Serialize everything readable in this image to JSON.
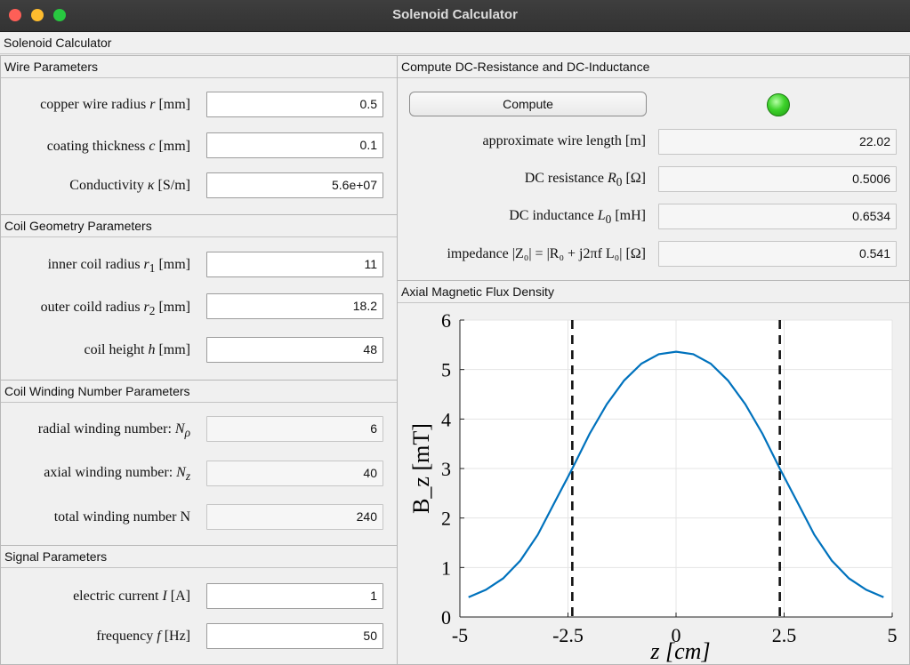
{
  "window": {
    "title": "Solenoid Calculator"
  },
  "app": {
    "title": "Solenoid Calculator"
  },
  "wire": {
    "header": "Wire Parameters",
    "radius_label": "copper wire radius",
    "radius_sym": "r",
    "radius_unit": "[mm]",
    "radius_value": "0.5",
    "coating_label": "coating thickness",
    "coating_sym": "c",
    "coating_unit": "[mm]",
    "coating_value": "0.1",
    "cond_label": "Conductivity",
    "cond_sym": "κ",
    "cond_unit": "[S/m]",
    "cond_value": "5.6e+07"
  },
  "geometry": {
    "header": "Coil Geometry Parameters",
    "inner_label": "inner coil radius",
    "inner_sym": "r",
    "inner_sub": "1",
    "inner_unit": "[mm]",
    "inner_value": "11",
    "outer_label": "outer coild radius",
    "outer_sym": "r",
    "outer_sub": "2",
    "outer_unit": "[mm]",
    "outer_value": "18.2",
    "height_label": "coil height",
    "height_sym": "h",
    "height_unit": "[mm]",
    "height_value": "48"
  },
  "winding": {
    "header": "Coil Winding Number Parameters",
    "radial_label": "radial winding number:",
    "radial_sym": "N",
    "radial_sub": "ρ",
    "radial_value": "6",
    "axial_label": "axial winding number:",
    "axial_sym": "N",
    "axial_sub": "z",
    "axial_value": "40",
    "total_label": "total winding number N",
    "total_value": "240"
  },
  "signal": {
    "header": "Signal Parameters",
    "current_label": "electric current",
    "current_sym": "I",
    "current_unit": "[A]",
    "current_value": "1",
    "freq_label": "frequency",
    "freq_sym": "f",
    "freq_unit": "[Hz]",
    "freq_value": "50"
  },
  "compute": {
    "header": "Compute DC-Resistance and DC-Inductance",
    "button_label": "Compute",
    "status_color": "#3dd22a",
    "length_label": "approximate wire length [m]",
    "length_value": "22.02",
    "res_label": "DC resistance",
    "res_sym": "R",
    "res_sub": "0",
    "res_unit": "[Ω]",
    "res_value": "0.5006",
    "ind_label": "DC inductance",
    "ind_sym": "L",
    "ind_sub": "0",
    "ind_unit": "[mH]",
    "ind_value": "0.6534",
    "imp_label": "impedance |Z₀| = |R₀ + j2πf L₀| [Ω]",
    "imp_value": "0.541"
  },
  "plot": {
    "header": "Axial Magnetic Flux Density"
  },
  "chart_data": {
    "type": "line",
    "title": "",
    "xlabel": "z [cm]",
    "ylabel": "B_z [mT]",
    "xlim": [
      -5,
      5
    ],
    "ylim": [
      0,
      6
    ],
    "xticks": [
      "-5",
      "-2.5",
      "0",
      "2.5",
      "5"
    ],
    "xtick_values": [
      -5,
      -2.5,
      0,
      2.5,
      5
    ],
    "yticks": [
      "0",
      "1",
      "2",
      "3",
      "4",
      "5",
      "6"
    ],
    "ytick_values": [
      0,
      1,
      2,
      3,
      4,
      5,
      6
    ],
    "grid": true,
    "line_color": "#0072bd",
    "x": [
      -4.8,
      -4.4,
      -4.0,
      -3.6,
      -3.2,
      -2.8,
      -2.4,
      -2.0,
      -1.6,
      -1.2,
      -0.8,
      -0.4,
      0,
      0.4,
      0.8,
      1.2,
      1.6,
      2.0,
      2.4,
      2.8,
      3.2,
      3.6,
      4.0,
      4.4,
      4.8
    ],
    "y": [
      0.4,
      0.55,
      0.78,
      1.14,
      1.66,
      2.33,
      3.0,
      3.7,
      4.3,
      4.78,
      5.12,
      5.31,
      5.36,
      5.31,
      5.12,
      4.78,
      4.3,
      3.7,
      3.0,
      2.33,
      1.66,
      1.14,
      0.78,
      0.55,
      0.4
    ],
    "markers": [
      -2.4,
      2.4
    ]
  }
}
